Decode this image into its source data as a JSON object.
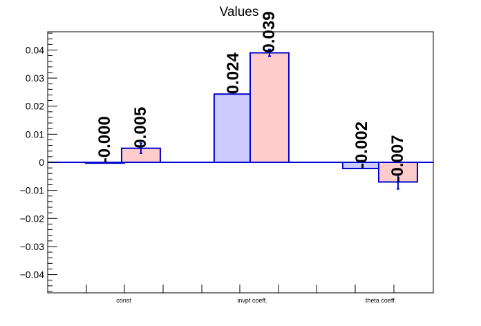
{
  "chart_data": {
    "type": "bar",
    "title": "Values",
    "xlabel": "",
    "ylabel": "",
    "categories": [
      "const",
      "invpt coeff.",
      "theta coeff."
    ],
    "series": [
      {
        "color": "#ccccff",
        "values": [
          -0.0003,
          0.0243,
          -0.0022
        ],
        "labels": [
          "-0.000",
          "0.024",
          "-0.002"
        ],
        "errors": [
          0,
          0,
          0
        ]
      },
      {
        "color": "#ffcccc",
        "values": [
          0.005,
          0.039,
          -0.007
        ],
        "labels": [
          "0.005",
          "0.039",
          "-0.007"
        ],
        "errors": [
          0.0018,
          0.0012,
          0.0025
        ]
      }
    ],
    "ylim": [
      -0.0465,
      0.0465
    ],
    "yticks": [
      -0.04,
      -0.03,
      -0.02,
      -0.01,
      0,
      0.01,
      0.02,
      0.03,
      0.04
    ],
    "ytick_labels": [
      "−0.04",
      "−0.03",
      "−0.02",
      "−0.01",
      "0",
      "0.01",
      "0.02",
      "0.03",
      "0.04"
    ],
    "grid": false,
    "legend": "none",
    "bar_edge_color": "#0000cc",
    "error_color": "#0000cc",
    "zero_line_color": "#0000cc"
  }
}
